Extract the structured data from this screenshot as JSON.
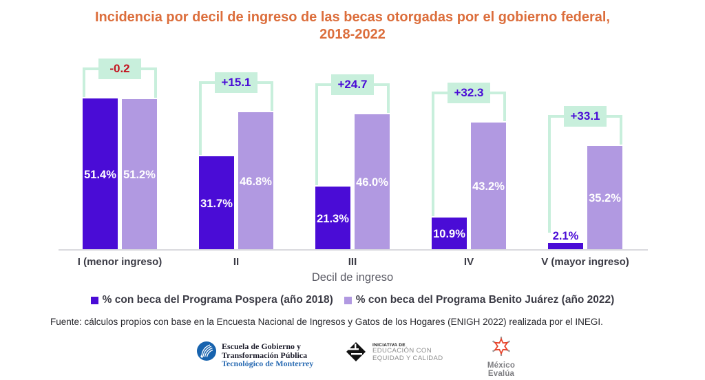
{
  "title": {
    "line1": "Incidencia por decil de ingreso de las becas otorgadas por el gobierno federal,",
    "line2": "2018-2022"
  },
  "chart_data": {
    "type": "bar",
    "categories": [
      "I (menor ingreso)",
      "II",
      "III",
      "IV",
      "V (mayor ingreso)"
    ],
    "series": [
      {
        "name": "% con beca del Programa Pospera (año 2018)",
        "color": "#4A0CD6",
        "values": [
          51.4,
          31.7,
          21.3,
          10.9,
          2.1
        ],
        "labels": [
          "51.4%",
          "31.7%",
          "21.3%",
          "10.9%",
          "2.1%"
        ]
      },
      {
        "name": "% con beca del Programa Benito Juárez (año 2022)",
        "color": "#B199E1",
        "values": [
          51.2,
          46.8,
          46.0,
          43.2,
          35.2
        ],
        "labels": [
          "51.2%",
          "46.8%",
          "46.0%",
          "43.2%",
          "35.2%"
        ]
      }
    ],
    "differences": {
      "values": [
        -0.2,
        15.1,
        24.7,
        32.3,
        33.1
      ],
      "labels": [
        "-0.2",
        "+15.1",
        "+24.7",
        "+32.3",
        "+33.1"
      ],
      "positive_color": "#4A0CD6",
      "negative_color": "#C41420",
      "badge_bg": "#C8EFDC"
    },
    "xlabel": "Decil de ingreso",
    "ylim": [
      0,
      60
    ],
    "grid": false,
    "legend_position": "bottom",
    "title": "Incidencia por decil de ingreso de las becas otorgadas por el gobierno federal, 2018-2022"
  },
  "source": "Fuente: cálculos propios con base en la Encuesta Nacional de Ingresos y Gatos de los Hogares (ENIGH 2022) realizada por el INEGI.",
  "footer": {
    "tec": {
      "line1": "Escuela de Gobierno y",
      "line2": "Transformación Pública",
      "line3": "Tecnológico de Monterrey"
    },
    "eec": {
      "kicker": "INICIATIVA DE",
      "line1": "EDUCACIÓN CON",
      "line2": "EQUIDAD Y CALIDAD"
    },
    "mexico_evalua": {
      "label": "México Evalúa"
    }
  },
  "colors": {
    "title": "#DC6E3C",
    "axis_line": "#D9D9DE",
    "tick_text": "#3B3B45",
    "bracket": "#C8EFDC"
  }
}
